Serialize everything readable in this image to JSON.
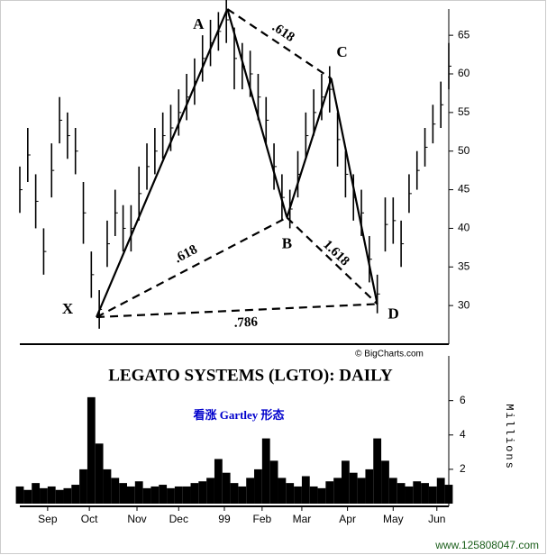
{
  "chart_data": [
    {
      "type": "hilo",
      "title": "LEGATO SYSTEMS (LGTO): DAILY",
      "subtitle": "看涨 Gartley 形态",
      "source": "© BigCharts.com",
      "color": "#000000",
      "x": [
        0,
        4,
        8,
        12,
        16,
        20,
        24,
        28,
        32,
        36,
        40,
        44,
        48,
        52,
        56,
        60,
        64,
        68,
        72,
        76,
        80,
        84,
        88,
        92,
        96,
        100,
        104,
        108,
        112,
        116,
        120,
        124,
        128,
        132,
        136,
        140,
        144,
        148,
        152,
        156,
        160,
        164,
        168,
        172,
        176,
        180,
        184,
        188,
        192,
        196,
        200,
        204,
        208,
        212,
        216
      ],
      "high": [
        48,
        53,
        47,
        40,
        51,
        57,
        55,
        53,
        46,
        37,
        32,
        41,
        45,
        43,
        43,
        48,
        51,
        53,
        55,
        56,
        58,
        60,
        62,
        65,
        67,
        68,
        70,
        66,
        64,
        63,
        60,
        57,
        51,
        47,
        45,
        50,
        55,
        58,
        60,
        61,
        55,
        50,
        47,
        45,
        39,
        34,
        44,
        44,
        41,
        47,
        50,
        53,
        56,
        59,
        64
      ],
      "low": [
        42,
        46,
        40,
        34,
        44,
        51,
        49,
        47,
        38,
        31,
        27,
        35,
        39,
        37,
        37,
        41,
        45,
        47,
        49,
        50,
        52,
        54,
        56,
        59,
        61,
        63,
        64,
        58,
        58,
        57,
        54,
        51,
        45,
        41,
        40,
        44,
        49,
        52,
        54,
        55,
        48,
        44,
        41,
        39,
        33,
        29,
        37,
        38,
        35,
        42,
        45,
        48,
        51,
        53,
        58
      ],
      "xlim": [
        0,
        216
      ],
      "ylim": [
        25,
        68.4
      ],
      "yticks": [
        30,
        35,
        40,
        45,
        50,
        55,
        60,
        65
      ],
      "pattern": {
        "points": [
          {
            "label": "X",
            "x": 38.6,
            "y": 28.5
          },
          {
            "label": "A",
            "x": 104.5,
            "y": 68.4
          },
          {
            "label": "B",
            "x": 134.5,
            "y": 41.4
          },
          {
            "label": "C",
            "x": 156.8,
            "y": 59.4
          },
          {
            "label": "D",
            "x": 180,
            "y": 30.2
          }
        ],
        "legs": [
          [
            0,
            1
          ],
          [
            1,
            2
          ],
          [
            2,
            3
          ],
          [
            3,
            4
          ]
        ],
        "ratios": [
          {
            "label": ".618",
            "from": 1,
            "to": 3
          },
          {
            "label": ".618",
            "from": 0,
            "to": 2
          },
          {
            "label": "1.618",
            "from": 2,
            "to": 4
          },
          {
            "label": ".786",
            "from": 0,
            "to": 4
          }
        ]
      }
    },
    {
      "type": "bar",
      "y_label": "Millions",
      "color": "#000000",
      "x": [
        0,
        4,
        8,
        12,
        16,
        20,
        24,
        28,
        32,
        36,
        40,
        44,
        48,
        52,
        56,
        60,
        64,
        68,
        72,
        76,
        80,
        84,
        88,
        92,
        96,
        100,
        104,
        108,
        112,
        116,
        120,
        124,
        128,
        132,
        136,
        140,
        144,
        148,
        152,
        156,
        160,
        164,
        168,
        172,
        176,
        180,
        184,
        188,
        192,
        196,
        200,
        204,
        208,
        212,
        216
      ],
      "values": [
        1.0,
        0.8,
        1.2,
        0.9,
        1.0,
        0.8,
        0.9,
        1.1,
        2.0,
        6.2,
        3.5,
        2.0,
        1.5,
        1.2,
        1.0,
        1.3,
        0.9,
        1.0,
        1.1,
        0.9,
        1.0,
        1.0,
        1.2,
        1.3,
        1.5,
        2.6,
        1.8,
        1.2,
        1.0,
        1.5,
        2.0,
        3.8,
        2.5,
        1.5,
        1.2,
        1.0,
        1.6,
        1.0,
        0.9,
        1.3,
        1.5,
        2.5,
        1.8,
        1.5,
        2.0,
        3.8,
        2.5,
        1.5,
        1.2,
        1.0,
        1.3,
        1.2,
        1.0,
        1.5,
        1.1
      ],
      "xlim": [
        0,
        216
      ],
      "ylim": [
        0,
        7.4
      ],
      "yticks": [
        2,
        4,
        6
      ],
      "xticks": [
        {
          "value": 14,
          "label": "Sep"
        },
        {
          "value": 35,
          "label": "Oct"
        },
        {
          "value": 59,
          "label": "Nov"
        },
        {
          "value": 80,
          "label": "Dec"
        },
        {
          "value": 103,
          "label": "99"
        },
        {
          "value": 122,
          "label": "Feb"
        },
        {
          "value": 142,
          "label": "Mar"
        },
        {
          "value": 165,
          "label": "Apr"
        },
        {
          "value": 188,
          "label": "May"
        },
        {
          "value": 210,
          "label": "Jun"
        }
      ]
    }
  ],
  "watermark": "www.125808047.com"
}
